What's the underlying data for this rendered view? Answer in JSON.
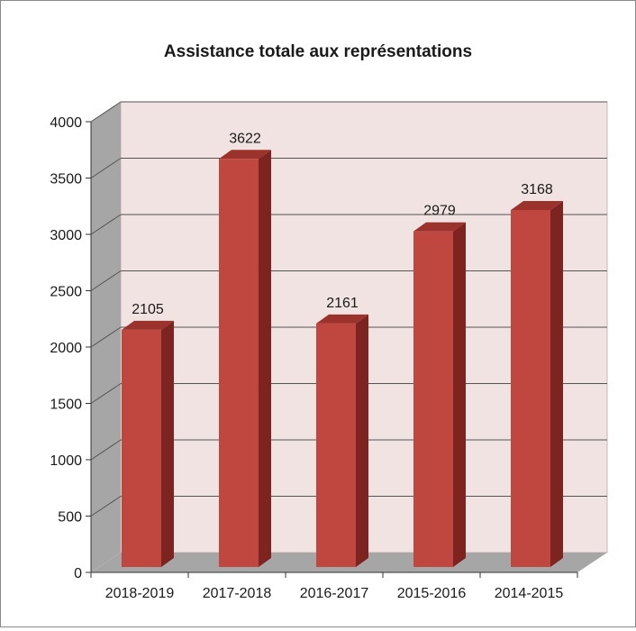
{
  "chart_data": {
    "type": "bar",
    "title": "Assistance totale aux représentations",
    "categories": [
      "2018-2019",
      "2017-2018",
      "2016-2017",
      "2015-2016",
      "2014-2015"
    ],
    "values": [
      2105,
      3622,
      2161,
      2979,
      3168
    ],
    "ylim": [
      0,
      4000
    ],
    "yticks": [
      0,
      500,
      1000,
      1500,
      2000,
      2500,
      3000,
      3500,
      4000
    ],
    "grid": true,
    "legend": "none",
    "style": "3d-column",
    "colors": {
      "bar_front": "#c0473f",
      "bar_side": "#7e2420",
      "bar_top": "#9b322c",
      "wall": "#f2e3e3",
      "side_wall": "#a6a6a6",
      "floor": "#a6a6a6",
      "gridline": "#555555"
    }
  }
}
